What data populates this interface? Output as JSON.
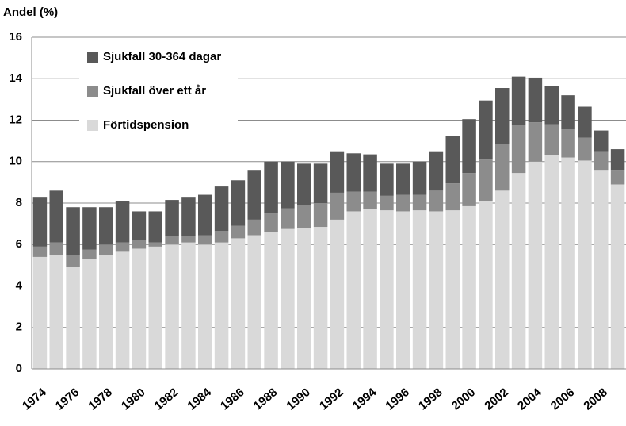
{
  "chart_data": {
    "type": "stacked_bar",
    "y_label": "Andel (%)",
    "categories": [
      "1974",
      null,
      "1976",
      null,
      "1978",
      null,
      "1980",
      null,
      "1982",
      null,
      "1984",
      null,
      "1986",
      null,
      "1988",
      null,
      "1990",
      null,
      "1992",
      null,
      "1994",
      null,
      "1996",
      null,
      "1998",
      null,
      "2000",
      null,
      "2002",
      null,
      "2004",
      null,
      "2006",
      null,
      "2008",
      null
    ],
    "series": [
      {
        "name": "Förtidspension",
        "color": "#d9d9d9",
        "values": [
          5.4,
          5.5,
          4.9,
          5.3,
          5.5,
          5.65,
          5.8,
          5.9,
          6.0,
          6.1,
          6.0,
          6.1,
          6.3,
          6.45,
          6.6,
          6.75,
          6.8,
          6.85,
          7.2,
          7.6,
          7.7,
          7.65,
          7.6,
          7.65,
          7.6,
          7.65,
          7.85,
          8.1,
          8.6,
          9.45,
          10.0,
          10.3,
          10.2,
          10.05,
          9.6,
          8.9
        ]
      },
      {
        "name": "Sjukfall  över ett år",
        "color": "#8c8c8c",
        "values": [
          0.5,
          0.6,
          0.6,
          0.45,
          0.5,
          0.45,
          0.4,
          0.2,
          0.4,
          0.3,
          0.45,
          0.55,
          0.6,
          0.75,
          0.9,
          1.0,
          1.1,
          1.15,
          1.3,
          0.95,
          0.85,
          0.7,
          0.8,
          0.75,
          1.0,
          1.3,
          1.6,
          2.0,
          2.25,
          2.3,
          1.9,
          1.5,
          1.35,
          1.1,
          0.9,
          0.7
        ]
      },
      {
        "name": "Sjukfall  30-364 dagar",
        "color": "#595959",
        "values": [
          2.4,
          2.5,
          2.3,
          2.05,
          1.8,
          2.0,
          1.4,
          1.5,
          1.75,
          1.9,
          1.95,
          2.15,
          2.2,
          2.4,
          2.5,
          2.25,
          2.0,
          1.9,
          2.0,
          1.85,
          1.8,
          1.55,
          1.5,
          1.6,
          1.9,
          2.3,
          2.6,
          2.85,
          2.7,
          2.35,
          2.15,
          1.85,
          1.65,
          1.5,
          1.0,
          1.0
        ]
      }
    ],
    "ylim": [
      0,
      16
    ],
    "yticks": [
      0,
      2,
      4,
      6,
      8,
      10,
      12,
      14,
      16
    ],
    "grid": true,
    "legend": "top-left"
  }
}
